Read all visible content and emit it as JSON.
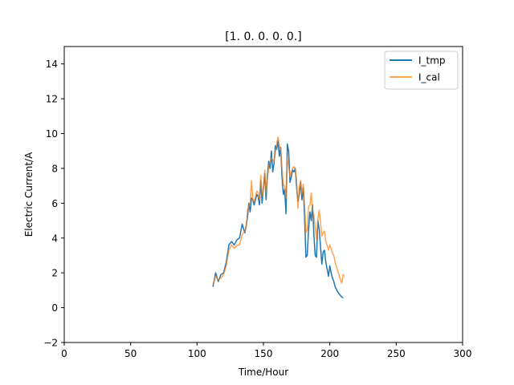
{
  "chart_data": {
    "type": "line",
    "title": "[1. 0. 0. 0. 0.]",
    "xlabel": "Time/Hour",
    "ylabel": "Electric Current/A",
    "xlim": [
      0,
      300
    ],
    "ylim": [
      -2,
      15
    ],
    "xticks": [
      0,
      50,
      100,
      150,
      200,
      250,
      300
    ],
    "yticks": [
      -2,
      0,
      2,
      4,
      6,
      8,
      10,
      12,
      14
    ],
    "grid": false,
    "legend_position": "top-right",
    "series": [
      {
        "name": "I_tmp",
        "color": "#1f77b4",
        "x": [
          112,
          114,
          116,
          118,
          120,
          122,
          124,
          126,
          128,
          130,
          132,
          134,
          136,
          137,
          138,
          139,
          140,
          141,
          142,
          143,
          144,
          145,
          146,
          147,
          148,
          149,
          150,
          151,
          152,
          153,
          154,
          155,
          156,
          157,
          158,
          159,
          160,
          161,
          162,
          163,
          164,
          165,
          166,
          167,
          168,
          169,
          170,
          171,
          172,
          173,
          174,
          175,
          176,
          177,
          178,
          179,
          180,
          181,
          182,
          183,
          184,
          185,
          186,
          187,
          188,
          189,
          190,
          191,
          192,
          193,
          194,
          195,
          196,
          197,
          198,
          199,
          200,
          201,
          202,
          203,
          204,
          206,
          208,
          210
        ],
        "values": [
          1.2,
          2.0,
          1.5,
          1.9,
          2.0,
          2.6,
          3.6,
          3.8,
          3.6,
          3.9,
          4.0,
          4.8,
          4.3,
          4.7,
          5.2,
          6.0,
          5.5,
          6.3,
          6.2,
          5.9,
          6.2,
          6.5,
          6.4,
          5.9,
          7.3,
          6.0,
          6.9,
          7.7,
          6.2,
          7.6,
          8.4,
          8.0,
          9.0,
          7.8,
          8.3,
          9.3,
          9.1,
          9.6,
          8.7,
          9.2,
          7.5,
          6.5,
          6.8,
          5.4,
          9.4,
          9.0,
          7.2,
          7.5,
          7.9,
          7.8,
          8.0,
          6.9,
          6.1,
          6.5,
          7.2,
          6.2,
          6.9,
          5.2,
          2.9,
          3.0,
          4.5,
          5.5,
          5.0,
          5.9,
          4.2,
          3.0,
          2.9,
          5.0,
          4.5,
          3.5,
          2.5,
          3.2,
          3.3,
          2.6,
          2.2,
          1.8,
          2.4,
          2.0,
          1.7,
          1.5,
          1.2,
          0.9,
          0.7,
          0.55
        ]
      },
      {
        "name": "I_cal",
        "color": "#ff7f0e",
        "x": [
          112,
          114,
          116,
          118,
          120,
          122,
          124,
          126,
          128,
          130,
          132,
          134,
          136,
          137,
          138,
          139,
          140,
          141,
          142,
          143,
          144,
          145,
          146,
          147,
          148,
          149,
          150,
          151,
          152,
          153,
          154,
          155,
          156,
          157,
          158,
          159,
          160,
          161,
          162,
          163,
          164,
          165,
          166,
          167,
          168,
          169,
          170,
          171,
          172,
          173,
          174,
          175,
          176,
          177,
          178,
          179,
          180,
          181,
          182,
          183,
          184,
          185,
          186,
          187,
          188,
          189,
          190,
          191,
          192,
          193,
          194,
          195,
          196,
          197,
          198,
          199,
          200,
          201,
          202,
          203,
          204,
          206,
          208,
          209,
          210,
          211
        ],
        "values": [
          1.3,
          1.8,
          1.6,
          1.7,
          1.9,
          2.4,
          3.3,
          3.6,
          3.4,
          3.6,
          3.6,
          4.2,
          4.4,
          4.6,
          5.6,
          5.8,
          6.0,
          7.3,
          6.2,
          6.1,
          6.4,
          6.7,
          6.6,
          6.2,
          7.6,
          6.4,
          6.8,
          7.9,
          6.6,
          7.4,
          8.1,
          8.4,
          8.6,
          8.5,
          8.4,
          8.9,
          9.4,
          9.8,
          9.3,
          9.1,
          8.0,
          7.1,
          7.0,
          6.3,
          8.6,
          8.1,
          7.5,
          7.8,
          8.0,
          8.1,
          8.0,
          7.3,
          5.7,
          6.9,
          7.3,
          6.5,
          7.1,
          5.9,
          4.3,
          4.5,
          5.8,
          5.9,
          6.6,
          5.6,
          5.3,
          4.6,
          3.9,
          5.1,
          5.6,
          4.9,
          4.1,
          4.3,
          4.4,
          3.8,
          3.6,
          3.3,
          3.6,
          3.4,
          3.1,
          3.0,
          2.6,
          2.1,
          1.6,
          1.4,
          1.9,
          1.8
        ]
      }
    ]
  }
}
